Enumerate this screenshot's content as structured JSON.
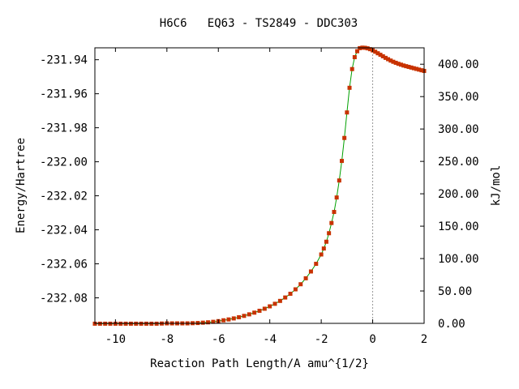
{
  "chart_data": {
    "type": "line",
    "title": "H6C6   EQ63 - TS2849 - DDC303",
    "xlabel": "Reaction Path Length/A amu^{1/2}",
    "ylabel": "Energy/Hartree",
    "y2label": "kJ/mol",
    "xlim": [
      -10.8,
      2.0
    ],
    "ylim": [
      -232.095,
      -231.933
    ],
    "y2lim": [
      0.0,
      425.3
    ],
    "x_ticks": [
      -10,
      -8,
      -6,
      -4,
      -2,
      0,
      2
    ],
    "x_tick_labels": [
      "-10",
      "-8",
      "-6",
      "-4",
      "-2",
      "0",
      "2"
    ],
    "y_ticks": [
      -231.94,
      -231.96,
      -231.98,
      -232.0,
      -232.02,
      -232.04,
      -232.06,
      -232.08
    ],
    "y_tick_labels": [
      "-231.94",
      "-231.96",
      "-231.98",
      "-232.00",
      "-232.02",
      "-232.04",
      "-232.06",
      "-232.08"
    ],
    "y2_ticks": [
      0,
      50,
      100,
      150,
      200,
      250,
      300,
      350,
      400
    ],
    "y2_tick_labels": [
      "0.00",
      "50.00",
      "100.00",
      "150.00",
      "200.00",
      "250.00",
      "300.00",
      "350.00",
      "400.00"
    ],
    "ts_marker_x": 0,
    "line_color": "#00a000",
    "point_color": "#c83200",
    "marker_line_color": "#999999",
    "series": [
      {
        "x": [
          -10.8,
          -10.6,
          -10.4,
          -10.2,
          -10.0,
          -9.8,
          -9.6,
          -9.4,
          -9.2,
          -9.0,
          -8.8,
          -8.6,
          -8.4,
          -8.2,
          -8.0,
          -7.8,
          -7.6,
          -7.4,
          -7.2,
          -7.0,
          -6.8,
          -6.6,
          -6.4,
          -6.2,
          -6.0,
          -5.8,
          -5.6,
          -5.4,
          -5.2,
          -5.0,
          -4.8,
          -4.6,
          -4.4,
          -4.2,
          -4.0,
          -3.8,
          -3.6,
          -3.4,
          -3.2,
          -3.0,
          -2.8,
          -2.6,
          -2.4,
          -2.2,
          -2.0,
          -1.9,
          -1.8,
          -1.7,
          -1.6,
          -1.5,
          -1.4,
          -1.3,
          -1.2,
          -1.1,
          -1.0,
          -0.9,
          -0.8,
          -0.7,
          -0.6,
          -0.5,
          -0.4,
          -0.3,
          -0.2,
          -0.1,
          0.0,
          0.1,
          0.2,
          0.3,
          0.4,
          0.5,
          0.6,
          0.7,
          0.8,
          0.9,
          1.0,
          1.1,
          1.2,
          1.3,
          1.4,
          1.5,
          1.6,
          1.7,
          1.8,
          1.9,
          2.0
        ],
        "y": [
          -232.0952,
          -232.0952,
          -232.0952,
          -232.0952,
          -232.0952,
          -232.0952,
          -232.0952,
          -232.0952,
          -232.0952,
          -232.0952,
          -232.0952,
          -232.0952,
          -232.0952,
          -232.0951,
          -232.095,
          -232.095,
          -232.095,
          -232.095,
          -232.095,
          -232.0949,
          -232.0948,
          -232.0946,
          -232.0944,
          -232.0941,
          -232.0937,
          -232.0932,
          -232.0927,
          -232.0921,
          -232.0914,
          -232.0906,
          -232.0897,
          -232.0887,
          -232.0876,
          -232.0864,
          -232.085,
          -232.0835,
          -232.0818,
          -232.0798,
          -232.0776,
          -232.075,
          -232.072,
          -232.0685,
          -232.0645,
          -232.06,
          -232.0545,
          -232.051,
          -232.047,
          -232.042,
          -232.036,
          -232.0295,
          -232.021,
          -232.011,
          -231.9995,
          -231.986,
          -231.971,
          -231.9565,
          -231.9455,
          -231.9385,
          -231.935,
          -231.9332,
          -231.9329,
          -231.933,
          -231.9333,
          -231.9338,
          -231.9345,
          -231.9353,
          -231.9362,
          -231.9371,
          -231.938,
          -231.9389,
          -231.9397,
          -231.9405,
          -231.9412,
          -231.9418,
          -231.9424,
          -231.9429,
          -231.9434,
          -231.9438,
          -231.9442,
          -231.9446,
          -231.945,
          -231.9454,
          -231.9458,
          -231.9462,
          -231.9466
        ]
      }
    ]
  }
}
